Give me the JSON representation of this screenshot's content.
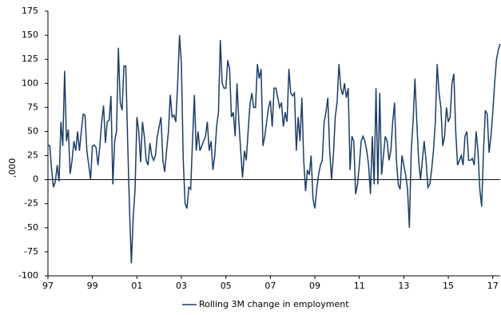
{
  "chart_data": {
    "type": "line",
    "y_label": ",000",
    "ylim": [
      -100,
      175
    ],
    "yticks": [
      -100,
      -75,
      -50,
      -25,
      0,
      25,
      50,
      75,
      100,
      125,
      150,
      175
    ],
    "categories": [
      "97",
      null,
      null,
      null,
      null,
      null,
      null,
      null,
      null,
      null,
      null,
      null,
      null,
      null,
      null,
      null,
      null,
      null,
      null,
      null,
      null,
      null,
      null,
      null,
      "99",
      null,
      null,
      null,
      null,
      null,
      null,
      null,
      null,
      null,
      null,
      null,
      null,
      null,
      null,
      null,
      null,
      null,
      null,
      null,
      null,
      null,
      null,
      null,
      "01",
      null,
      null,
      null,
      null,
      null,
      null,
      null,
      null,
      null,
      null,
      null,
      null,
      null,
      null,
      null,
      null,
      null,
      null,
      null,
      null,
      null,
      null,
      null,
      "03",
      null,
      null,
      null,
      null,
      null,
      null,
      null,
      null,
      null,
      null,
      null,
      null,
      null,
      null,
      null,
      null,
      null,
      null,
      null,
      null,
      null,
      null,
      null,
      "05",
      null,
      null,
      null,
      null,
      null,
      null,
      null,
      null,
      null,
      null,
      null,
      null,
      null,
      null,
      null,
      null,
      null,
      null,
      null,
      null,
      null,
      null,
      null,
      "07",
      null,
      null,
      null,
      null,
      null,
      null,
      null,
      null,
      null,
      null,
      null,
      null,
      null,
      null,
      null,
      null,
      null,
      null,
      null,
      null,
      null,
      null,
      null,
      "09",
      null,
      null,
      null,
      null,
      null,
      null,
      null,
      null,
      null,
      null,
      null,
      null,
      null,
      null,
      null,
      null,
      null,
      null,
      null,
      null,
      null,
      null,
      null,
      "11",
      null,
      null,
      null,
      null,
      null,
      null,
      null,
      null,
      null,
      null,
      null,
      null,
      null,
      null,
      null,
      null,
      null,
      null,
      null,
      null,
      null,
      null,
      null,
      "13",
      null,
      null,
      null,
      null,
      null,
      null,
      null,
      null,
      null,
      null,
      null,
      null,
      null,
      null,
      null,
      null,
      null,
      null,
      null,
      null,
      null,
      null,
      null,
      "15",
      null,
      null,
      null,
      null,
      null,
      null,
      null,
      null,
      null,
      null,
      null,
      null,
      null,
      null,
      null,
      null,
      null,
      null,
      null,
      null,
      null,
      null,
      null,
      "17",
      null,
      null,
      null,
      null
    ],
    "series": [
      {
        "name": "Rolling 3M change in employment",
        "color": "#1b3d66",
        "values": [
          36,
          35,
          10,
          -8,
          -2,
          15,
          -2,
          60,
          35,
          113,
          40,
          52,
          6,
          20,
          40,
          30,
          50,
          30,
          50,
          68,
          67,
          30,
          15,
          0,
          35,
          36,
          33,
          15,
          35,
          60,
          77,
          38,
          60,
          62,
          87,
          -5,
          40,
          50,
          137,
          80,
          72,
          118,
          118,
          40,
          -30,
          -87,
          -40,
          -10,
          65,
          50,
          18,
          60,
          45,
          20,
          15,
          38,
          25,
          20,
          25,
          45,
          55,
          65,
          20,
          8,
          30,
          50,
          88,
          65,
          67,
          60,
          100,
          150,
          120,
          20,
          -25,
          -30,
          -8,
          -10,
          40,
          88,
          30,
          50,
          30,
          35,
          40,
          45,
          60,
          30,
          40,
          10,
          25,
          55,
          70,
          145,
          100,
          95,
          95,
          124,
          115,
          65,
          70,
          45,
          100,
          60,
          30,
          2,
          30,
          20,
          50,
          78,
          90,
          75,
          75,
          120,
          105,
          115,
          35,
          45,
          60,
          75,
          82,
          55,
          95,
          95,
          85,
          75,
          80,
          55,
          70,
          60,
          115,
          90,
          87,
          90,
          30,
          65,
          40,
          85,
          20,
          -12,
          10,
          5,
          25,
          -20,
          -30,
          -10,
          5,
          15,
          20,
          60,
          70,
          85,
          30,
          0,
          25,
          65,
          80,
          120,
          95,
          88,
          100,
          85,
          95,
          10,
          45,
          40,
          -15,
          -5,
          15,
          40,
          45,
          40,
          30,
          15,
          -15,
          45,
          -5,
          95,
          -5,
          90,
          5,
          25,
          45,
          40,
          20,
          30,
          60,
          80,
          20,
          -5,
          -10,
          25,
          15,
          5,
          -10,
          -50,
          30,
          60,
          105,
          60,
          20,
          0,
          20,
          40,
          20,
          -8,
          -5,
          10,
          30,
          60,
          120,
          90,
          75,
          35,
          45,
          75,
          60,
          65,
          100,
          110,
          50,
          15,
          20,
          25,
          15,
          45,
          50,
          20,
          20,
          22,
          15,
          50,
          30,
          -10,
          -28,
          30,
          72,
          68,
          28,
          45,
          70,
          100,
          125,
          135,
          141
        ]
      }
    ]
  }
}
